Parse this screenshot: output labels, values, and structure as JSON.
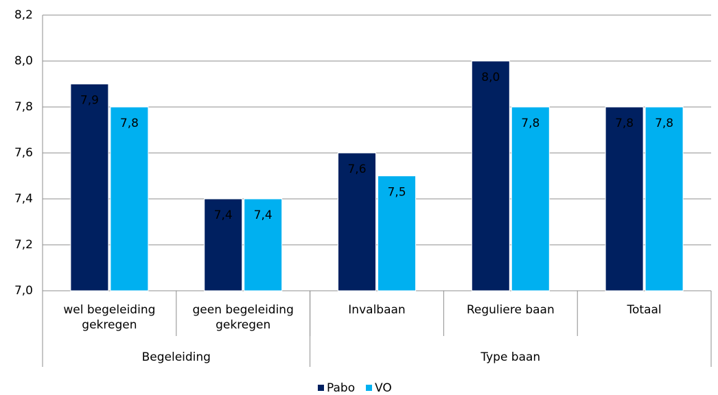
{
  "chart_data": {
    "type": "bar",
    "groups": [
      {
        "name": "Begeleiding",
        "categories": [
          "wel begeleiding gekregen",
          "geen begeleiding gekregen"
        ]
      },
      {
        "name": "Type baan",
        "categories": [
          "Invalbaan",
          "Reguliere baan",
          "Totaal"
        ]
      }
    ],
    "series": [
      {
        "name": "Pabo",
        "color": "#002060",
        "values": [
          7.9,
          7.4,
          7.6,
          8.0,
          7.8
        ],
        "value_labels": [
          "7,9",
          "7,4",
          "7,6",
          "8,0",
          "7,8"
        ]
      },
      {
        "name": "VO",
        "color": "#00b0f0",
        "values": [
          7.8,
          7.4,
          7.5,
          7.8,
          7.8
        ],
        "value_labels": [
          "7,8",
          "7,4",
          "7,5",
          "7,8",
          "7,8"
        ]
      }
    ],
    "ylim": [
      7.0,
      8.2
    ],
    "yticks": [
      {
        "value": 7.0,
        "label": "7,0"
      },
      {
        "value": 7.2,
        "label": "7,2"
      },
      {
        "value": 7.4,
        "label": "7,4"
      },
      {
        "value": 7.6,
        "label": "7,6"
      },
      {
        "value": 7.8,
        "label": "7,8"
      },
      {
        "value": 8.0,
        "label": "8,0"
      },
      {
        "value": 8.2,
        "label": "8,2"
      }
    ],
    "grid": true,
    "legend": "bottom"
  }
}
